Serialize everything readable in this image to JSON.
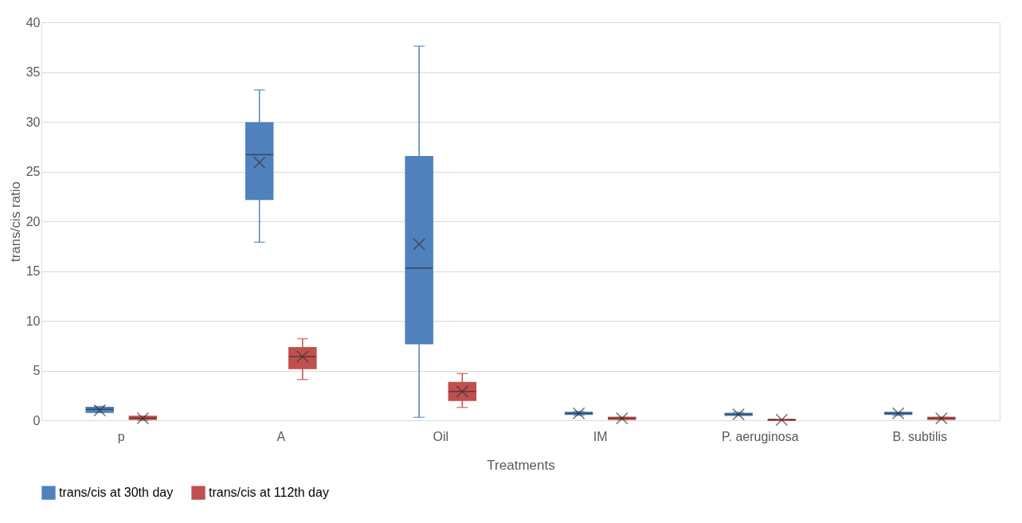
{
  "chart_data": {
    "type": "box",
    "xlabel": "Treatments",
    "ylabel": "trans/cis ratio",
    "categories": [
      "p",
      "A",
      "Oil",
      "IM",
      "P. aeruginosa",
      "B. subtilis"
    ],
    "ylim": [
      0,
      40
    ],
    "yticks": [
      0,
      5,
      10,
      15,
      20,
      25,
      30,
      35,
      40
    ],
    "grid": "y",
    "legend": "bottom",
    "series": [
      {
        "name": "trans/cis at 30th day",
        "color": "#4f81bd",
        "boxes": [
          {
            "low": 0.8,
            "q1": 0.8,
            "median": 1.1,
            "q3": 1.3,
            "high": 1.4,
            "mean": 1.0
          },
          {
            "low": 17.9,
            "q1": 22.2,
            "median": 26.7,
            "q3": 29.9,
            "high": 33.2,
            "mean": 25.9
          },
          {
            "low": 0.3,
            "q1": 7.7,
            "median": 15.3,
            "q3": 26.5,
            "high": 37.6,
            "mean": 17.7
          },
          {
            "low": 0.5,
            "q1": 0.6,
            "median": 0.7,
            "q3": 0.8,
            "high": 0.9,
            "mean": 0.7
          },
          {
            "low": 0.5,
            "q1": 0.5,
            "median": 0.6,
            "q3": 0.7,
            "high": 0.8,
            "mean": 0.6
          },
          {
            "low": 0.5,
            "q1": 0.6,
            "median": 0.7,
            "q3": 0.8,
            "high": 0.8,
            "mean": 0.7
          }
        ]
      },
      {
        "name": "trans/cis at 112th day",
        "color": "#c0504d",
        "boxes": [
          {
            "low": 0.0,
            "q1": 0.1,
            "median": 0.2,
            "q3": 0.4,
            "high": 0.4,
            "mean": 0.2
          },
          {
            "low": 4.1,
            "q1": 5.2,
            "median": 6.4,
            "q3": 7.3,
            "high": 8.2,
            "mean": 6.4
          },
          {
            "low": 1.3,
            "q1": 2.0,
            "median": 2.9,
            "q3": 3.8,
            "high": 4.7,
            "mean": 2.9
          },
          {
            "low": 0.1,
            "q1": 0.1,
            "median": 0.2,
            "q3": 0.3,
            "high": 0.3,
            "mean": 0.2
          },
          {
            "low": 0.0,
            "q1": 0.0,
            "median": 0.05,
            "q3": 0.1,
            "high": 0.1,
            "mean": 0.05
          },
          {
            "low": 0.1,
            "q1": 0.1,
            "median": 0.2,
            "q3": 0.3,
            "high": 0.3,
            "mean": 0.2
          }
        ]
      }
    ]
  }
}
